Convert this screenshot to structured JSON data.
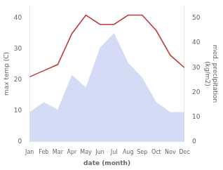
{
  "chart_data": {
    "type": "line",
    "xlabel": "date (month)",
    "ylabel": "max temp (C)",
    "y2label": "med. precipitation\n(kg/m2)",
    "categories": [
      "Jan",
      "Feb",
      "Mar",
      "Apr",
      "May",
      "Jun",
      "Jul",
      "Aug",
      "Sep",
      "Oct",
      "Nov",
      "Dec"
    ],
    "series": [
      {
        "type": "line",
        "color": "#c0393b",
        "values": [
          21,
          23,
          25,
          35,
          41,
          38,
          38,
          41,
          41,
          36,
          28,
          24
        ]
      },
      {
        "type": "area",
        "axis": "y2",
        "color": "#c5cff0",
        "values": [
          12,
          16,
          13,
          27,
          22,
          38,
          44,
          32,
          26,
          16,
          12,
          12
        ]
      }
    ],
    "ylim": [
      0,
      44
    ],
    "yticks": [
      0,
      10,
      20,
      30,
      40
    ],
    "y2lim": [
      0,
      55
    ],
    "y2ticks": [
      0,
      10,
      20,
      30,
      40,
      50
    ],
    "grid": false
  }
}
